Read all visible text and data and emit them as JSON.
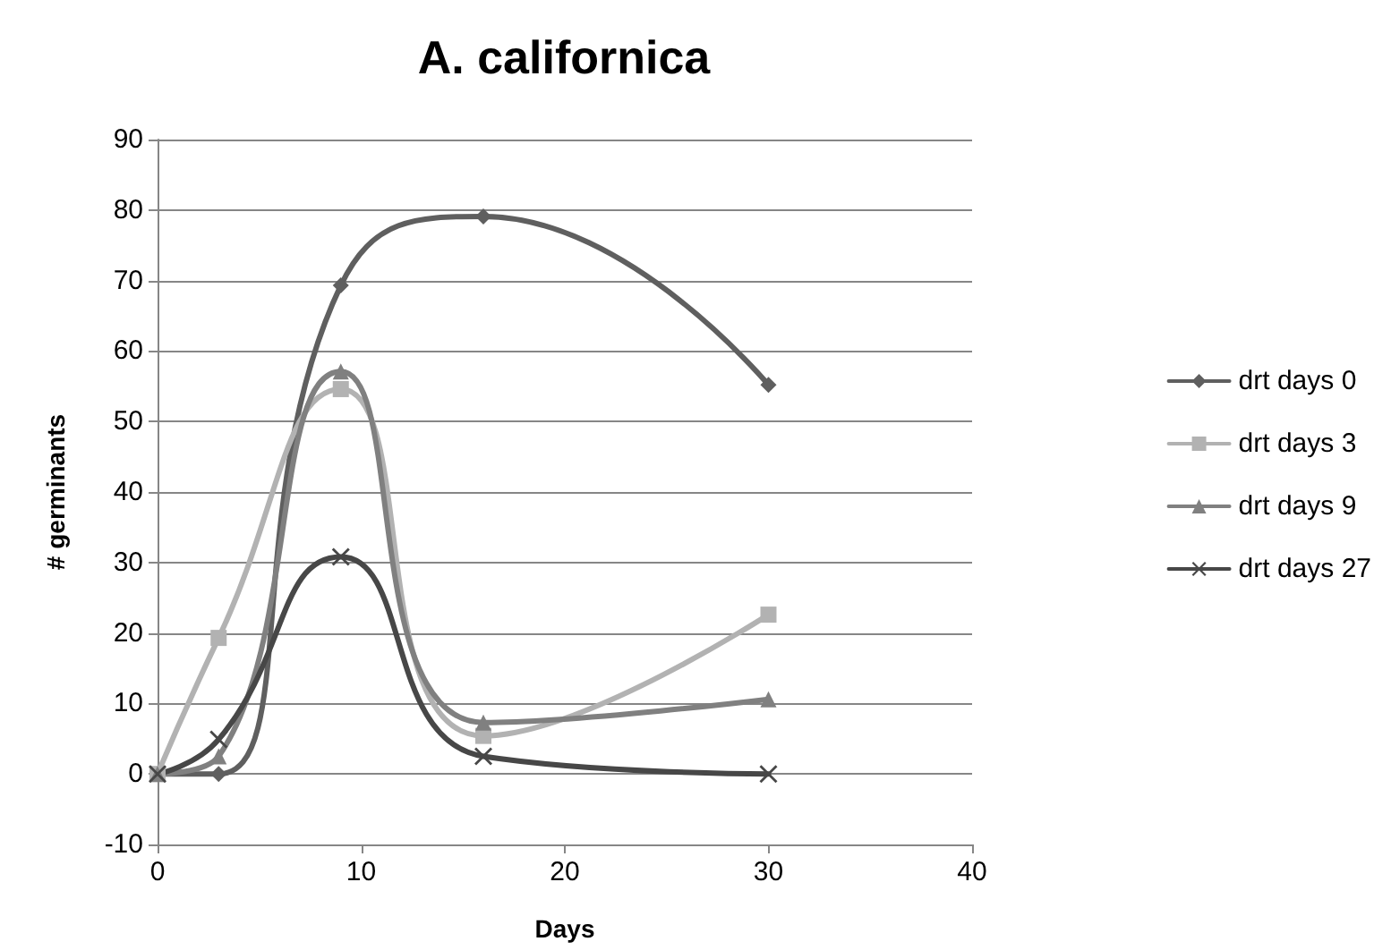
{
  "chart_data": {
    "type": "line",
    "title": "A. californica",
    "xlabel": "Days",
    "ylabel": "# germinants",
    "x": [
      0,
      3,
      9,
      16,
      30
    ],
    "series": [
      {
        "name": "drt days 0",
        "color": "#5f5f5f",
        "marker": "diamond",
        "values": [
          0,
          0,
          69.3,
          79.1,
          55.2
        ]
      },
      {
        "name": "drt days 3",
        "color": "#b2b2b2",
        "marker": "square",
        "values": [
          0,
          19.3,
          54.6,
          5.4,
          22.6
        ]
      },
      {
        "name": "drt days 9",
        "color": "#808080",
        "marker": "triangle",
        "values": [
          0,
          2.5,
          57.1,
          7.3,
          10.6
        ]
      },
      {
        "name": "drt days 27",
        "color": "#474747",
        "marker": "cross",
        "values": [
          0,
          4.9,
          30.8,
          2.5,
          0
        ]
      }
    ],
    "xlim": [
      0,
      40
    ],
    "xticks": [
      0,
      10,
      20,
      30,
      40
    ],
    "ylim": [
      -10,
      90
    ],
    "yticks": [
      -10,
      0,
      10,
      20,
      30,
      40,
      50,
      60,
      70,
      80,
      90
    ],
    "grid": "y",
    "legend": "right",
    "line_style": "solid"
  }
}
